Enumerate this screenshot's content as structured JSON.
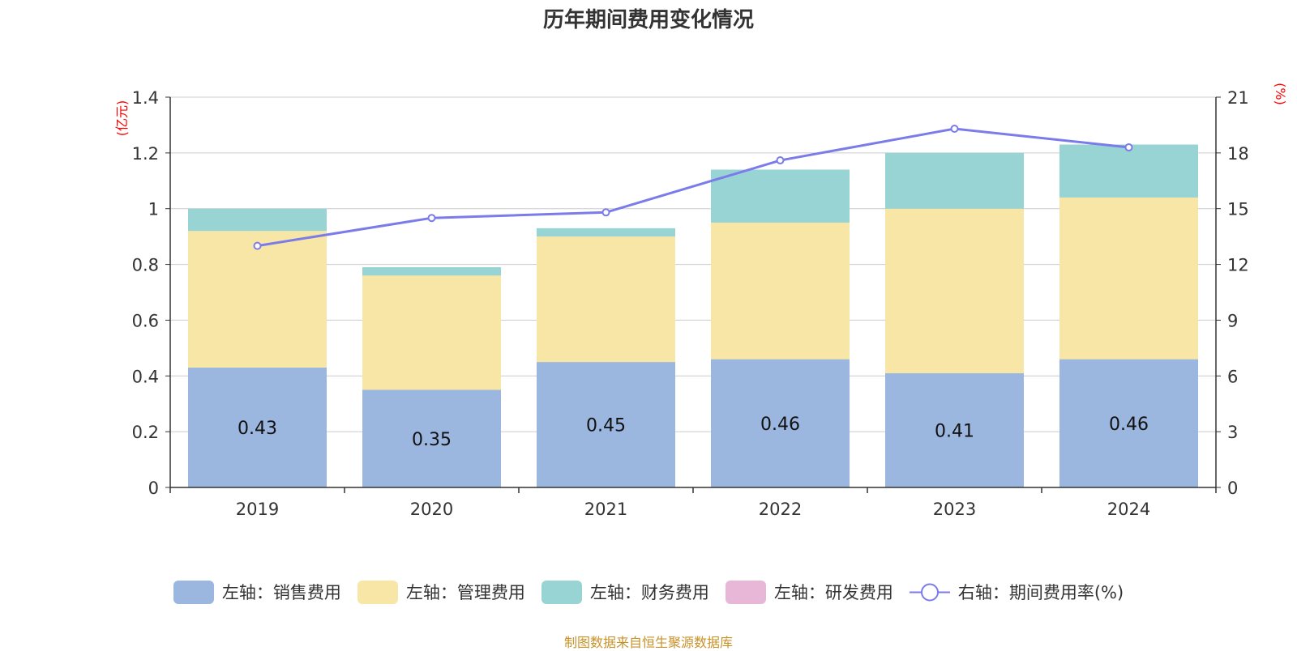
{
  "chart_data": {
    "type": "bar",
    "title": "历年期间费用变化情况",
    "categories": [
      "2019",
      "2020",
      "2021",
      "2022",
      "2023",
      "2024"
    ],
    "left_axis": {
      "unit": "(亿元)",
      "ylim": [
        0,
        1.4
      ],
      "ticks": [
        "0",
        "0.2",
        "0.4",
        "0.6",
        "0.8",
        "1",
        "1.2",
        "1.4"
      ]
    },
    "right_axis": {
      "unit": "(%)",
      "ylim": [
        0,
        21
      ],
      "ticks": [
        "0",
        "3",
        "6",
        "9",
        "12",
        "15",
        "18",
        "21"
      ]
    },
    "series": [
      {
        "name": "左轴：销售费用",
        "kind": "bar",
        "stack": "left",
        "color": "#9bb7e0",
        "values": [
          0.43,
          0.35,
          0.45,
          0.46,
          0.41,
          0.46
        ],
        "labels": [
          "0.43",
          "0.35",
          "0.45",
          "0.46",
          "0.41",
          "0.46"
        ]
      },
      {
        "name": "左轴：管理费用",
        "kind": "bar",
        "stack": "left",
        "color": "#f7e6a6",
        "values": [
          0.49,
          0.41,
          0.45,
          0.49,
          0.59,
          0.58
        ]
      },
      {
        "name": "左轴：财务费用",
        "kind": "bar",
        "stack": "left",
        "color": "#98d4d4",
        "values": [
          0.08,
          0.03,
          0.03,
          0.19,
          0.2,
          0.19
        ]
      },
      {
        "name": "左轴：研发费用",
        "kind": "bar",
        "stack": "left",
        "color": "#e8b7d8",
        "values": [
          0,
          0,
          0,
          0,
          0,
          0
        ]
      },
      {
        "name": "右轴：期间费用率(%)",
        "kind": "line",
        "axis": "right",
        "color": "#7b7bea",
        "values": [
          13.0,
          14.5,
          14.8,
          17.6,
          19.3,
          18.3
        ]
      }
    ],
    "grid": true,
    "legend_position": "bottom"
  },
  "source_note": "制图数据来自恒生聚源数据库"
}
